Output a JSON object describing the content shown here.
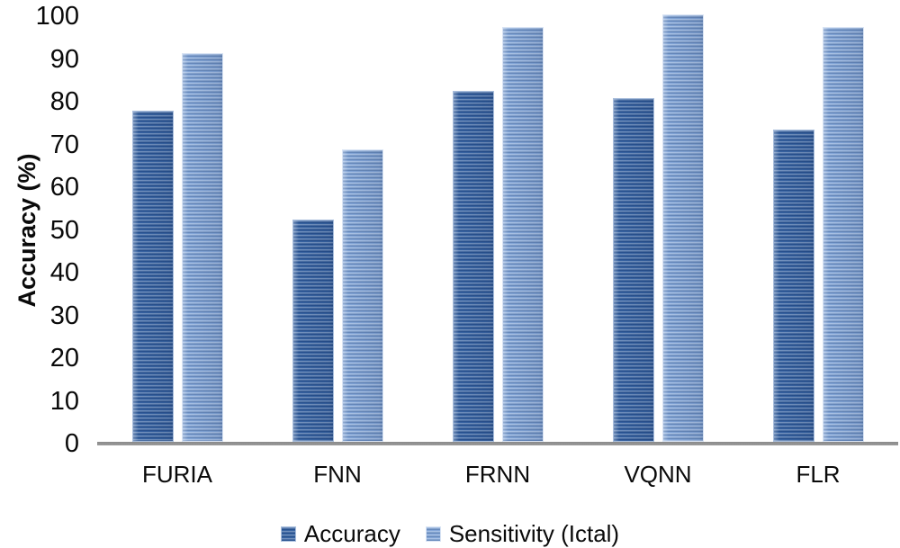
{
  "figure": {
    "background": "#FFFFFF",
    "axis_line_color": "#8A8A8A",
    "text_color": "#0A0A0A"
  },
  "chart_data": {
    "type": "bar",
    "ylabel": "Accuracy (%)",
    "ylim": [
      0,
      100
    ],
    "yticks": [
      0,
      10,
      20,
      30,
      40,
      50,
      60,
      70,
      80,
      90,
      100
    ],
    "grid": false,
    "legend_position": "bottom",
    "categories": [
      "FURIA",
      "FNN",
      "FRNN",
      "VQNN",
      "FLR"
    ],
    "series": [
      {
        "name": "Accuracy",
        "values": [
          77.5,
          52,
          82,
          80.5,
          73
        ],
        "fill": "#2E5C9E",
        "border": "#A9BEDC"
      },
      {
        "name": "Sensitivity (Ictal)",
        "values": [
          91,
          68.5,
          97,
          100,
          97
        ],
        "fill": "#7FA4D8",
        "border": "#D9E4F4"
      }
    ]
  }
}
